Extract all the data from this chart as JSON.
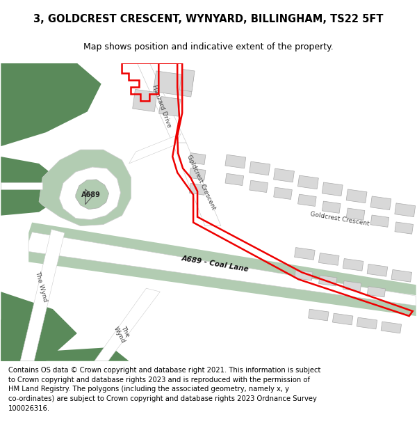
{
  "title": "3, GOLDCREST CRESCENT, WYNYARD, BILLINGHAM, TS22 5FT",
  "subtitle": "Map shows position and indicative extent of the property.",
  "footer": "Contains OS data © Crown copyright and database right 2021. This information is subject\nto Crown copyright and database rights 2023 and is reproduced with the permission of\nHM Land Registry. The polygons (including the associated geometry, namely x, y\nco-ordinates) are subject to Crown copyright and database rights 2023 Ordnance Survey\n100026316.",
  "bg_color": "#ffffff",
  "green_dark": "#5a8a5a",
  "green_light": "#b2ccb2",
  "building_fill": "#d8d8d8",
  "building_outline": "#aaaaaa",
  "red_color": "#ee0000",
  "title_fontsize": 10.5,
  "subtitle_fontsize": 9,
  "footer_fontsize": 7.2,
  "label_color": "#444444",
  "road_label_color": "#111111"
}
